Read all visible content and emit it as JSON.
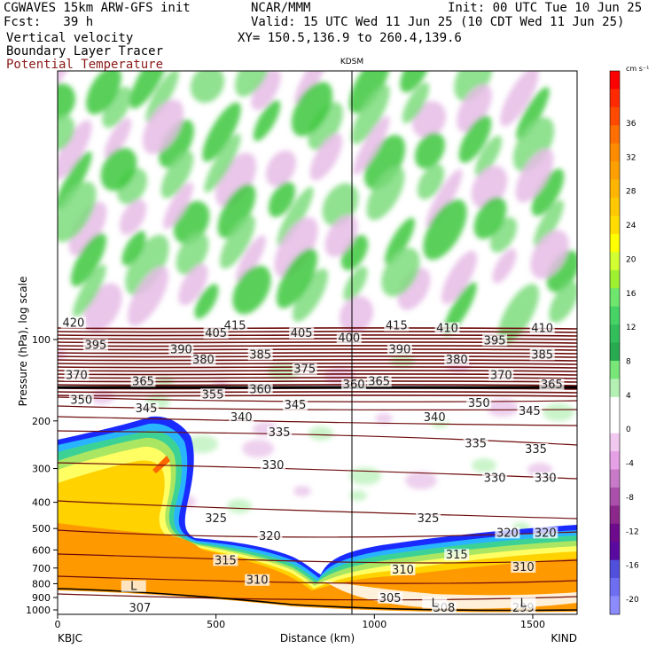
{
  "header": {
    "model": "CGWAVES 15km ARW-GFS init",
    "org": "NCAR/MMM",
    "init": "Init: 00 UTC Tue 10 Jun 25",
    "fcst": "Fcst:   39 h",
    "valid": "Valid: 15 UTC Wed 11 Jun 25 (10 CDT Wed 11 Jun 25)",
    "field1": "Vertical velocity",
    "field2": "Boundary Layer Tracer",
    "field3": "Potential Temperature",
    "xy": "XY= 150.5,136.9 to 260.4,139.6"
  },
  "colors": {
    "theta": "#6e0c0c",
    "field3_text": "#8b1a1a",
    "tracer_orange": "#ff9900"
  },
  "chart_data": {
    "type": "heatmap",
    "station_marker": "KDSM",
    "xlabel": "Distance (km)",
    "ylabel": "Pressure (hPa), log scale",
    "x_ticks": [
      "0",
      "500",
      "1000",
      "1500"
    ],
    "y_ticks": [
      "100",
      "200",
      "300",
      "400",
      "500",
      "600",
      "700",
      "800",
      "900",
      "1000"
    ],
    "left_endpoint": "KBJC",
    "right_endpoint": "KIND",
    "xlim": [
      0,
      1640
    ],
    "station_x_km": 935,
    "colorbar": {
      "units": "cm s⁻¹",
      "labels": [
        "36",
        "32",
        "28",
        "24",
        "20",
        "16",
        "12",
        "8",
        "4",
        "0",
        "-4",
        "-8",
        "-12",
        "-16",
        "-20"
      ]
    },
    "theta_labels": [
      {
        "t": "420",
        "x": 50,
        "p": 87
      },
      {
        "t": "415",
        "x": 560,
        "p": 89
      },
      {
        "t": "415",
        "x": 1070,
        "p": 89
      },
      {
        "t": "410",
        "x": 1230,
        "p": 91
      },
      {
        "t": "410",
        "x": 1530,
        "p": 91
      },
      {
        "t": "405",
        "x": 500,
        "p": 95
      },
      {
        "t": "405",
        "x": 770,
        "p": 95
      },
      {
        "t": "400",
        "x": 920,
        "p": 99
      },
      {
        "t": "395",
        "x": 120,
        "p": 105
      },
      {
        "t": "395",
        "x": 1380,
        "p": 101
      },
      {
        "t": "390",
        "x": 390,
        "p": 109
      },
      {
        "t": "390",
        "x": 1080,
        "p": 109
      },
      {
        "t": "385",
        "x": 640,
        "p": 114
      },
      {
        "t": "385",
        "x": 1530,
        "p": 114
      },
      {
        "t": "380",
        "x": 460,
        "p": 119
      },
      {
        "t": "380",
        "x": 1260,
        "p": 119
      },
      {
        "t": "375",
        "x": 780,
        "p": 129
      },
      {
        "t": "370",
        "x": 60,
        "p": 136
      },
      {
        "t": "370",
        "x": 1400,
        "p": 136
      },
      {
        "t": "365",
        "x": 270,
        "p": 143
      },
      {
        "t": "365",
        "x": 1015,
        "p": 143
      },
      {
        "t": "365",
        "x": 1560,
        "p": 147
      },
      {
        "t": "360",
        "x": 640,
        "p": 153
      },
      {
        "t": "360",
        "x": 935,
        "p": 147
      },
      {
        "t": "355",
        "x": 490,
        "p": 160
      },
      {
        "t": "350",
        "x": 75,
        "p": 168
      },
      {
        "t": "350",
        "x": 1330,
        "p": 172
      },
      {
        "t": "345",
        "x": 280,
        "p": 180
      },
      {
        "t": "345",
        "x": 750,
        "p": 175
      },
      {
        "t": "345",
        "x": 1490,
        "p": 184
      },
      {
        "t": "340",
        "x": 580,
        "p": 194
      },
      {
        "t": "340",
        "x": 1190,
        "p": 194
      },
      {
        "t": "335",
        "x": 700,
        "p": 221
      },
      {
        "t": "335",
        "x": 1320,
        "p": 243
      },
      {
        "t": "335",
        "x": 1510,
        "p": 255
      },
      {
        "t": "330",
        "x": 680,
        "p": 292
      },
      {
        "t": "330",
        "x": 1380,
        "p": 326
      },
      {
        "t": "330",
        "x": 1540,
        "p": 326
      },
      {
        "t": "325",
        "x": 500,
        "p": 460
      },
      {
        "t": "325",
        "x": 1170,
        "p": 460
      },
      {
        "t": "320",
        "x": 670,
        "p": 535
      },
      {
        "t": "320",
        "x": 1420,
        "p": 520
      },
      {
        "t": "320",
        "x": 1540,
        "p": 520
      },
      {
        "t": "315",
        "x": 530,
        "p": 657
      },
      {
        "t": "315",
        "x": 1260,
        "p": 627
      },
      {
        "t": "310",
        "x": 630,
        "p": 778
      },
      {
        "t": "310",
        "x": 1090,
        "p": 712
      },
      {
        "t": "310",
        "x": 1470,
        "p": 696
      },
      {
        "t": "305",
        "x": 1050,
        "p": 905
      },
      {
        "t": "307",
        "x": 260,
        "p": 985
      },
      {
        "t": "308",
        "x": 1220,
        "p": 985
      },
      {
        "t": "299",
        "x": 1470,
        "p": 985
      },
      {
        "t": "L",
        "x": 240,
        "p": 820
      },
      {
        "t": "L",
        "x": 1190,
        "p": 945
      },
      {
        "t": "L",
        "x": 1470,
        "p": 945
      }
    ]
  }
}
